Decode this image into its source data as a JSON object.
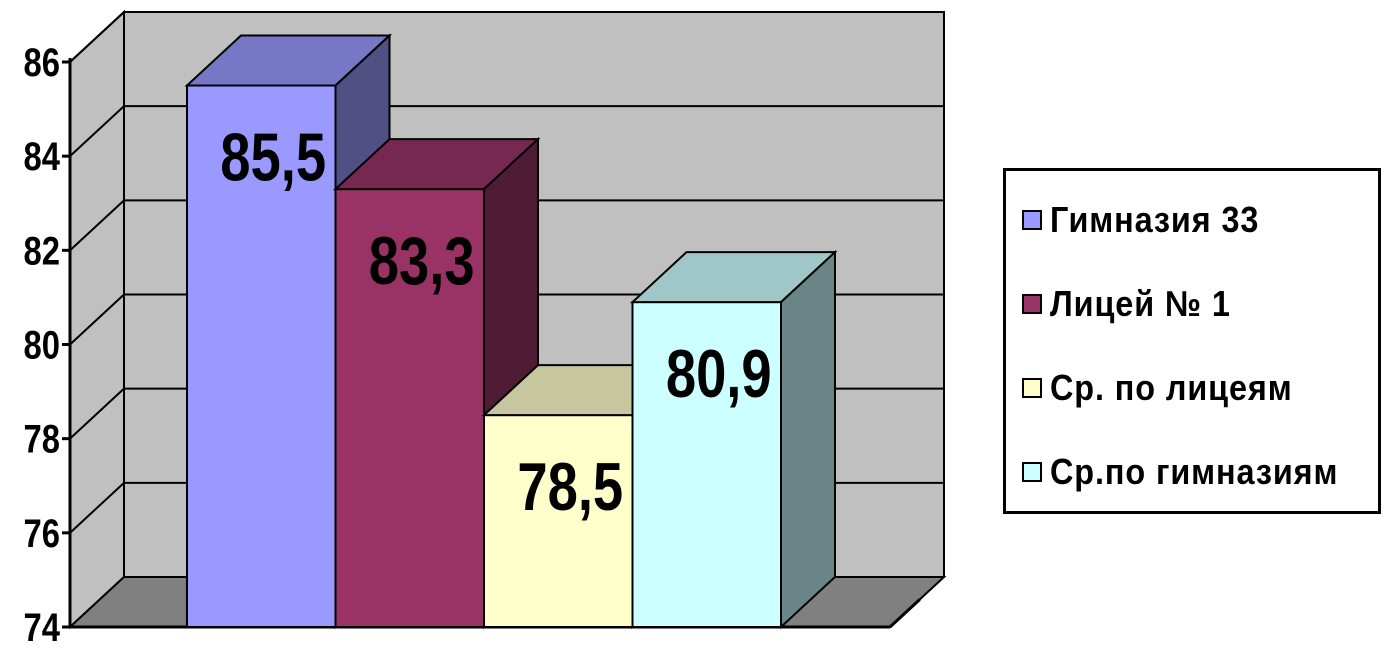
{
  "chart_data": {
    "type": "bar",
    "three_d": true,
    "ylim": [
      74,
      86
    ],
    "ytick_labels": [
      "74",
      "76",
      "78",
      "80",
      "82",
      "84",
      "86"
    ],
    "grid": true,
    "legend_position": "right",
    "wall_color": "#c0c0c0",
    "floor_color": "#808080",
    "series": [
      {
        "name": "Гимназия 33",
        "value": 85.5,
        "label": "85,5",
        "color": "#9999ff"
      },
      {
        "name": "Лицей № 1",
        "value": 83.3,
        "label": "83,3",
        "color": "#993366"
      },
      {
        "name": "Ср. по лицеям",
        "value": 78.5,
        "label": "78,5",
        "color": "#ffffcc"
      },
      {
        "name": "Ср.по гимназиям",
        "value": 80.9,
        "label": "80,9",
        "color": "#ccffff"
      }
    ]
  }
}
